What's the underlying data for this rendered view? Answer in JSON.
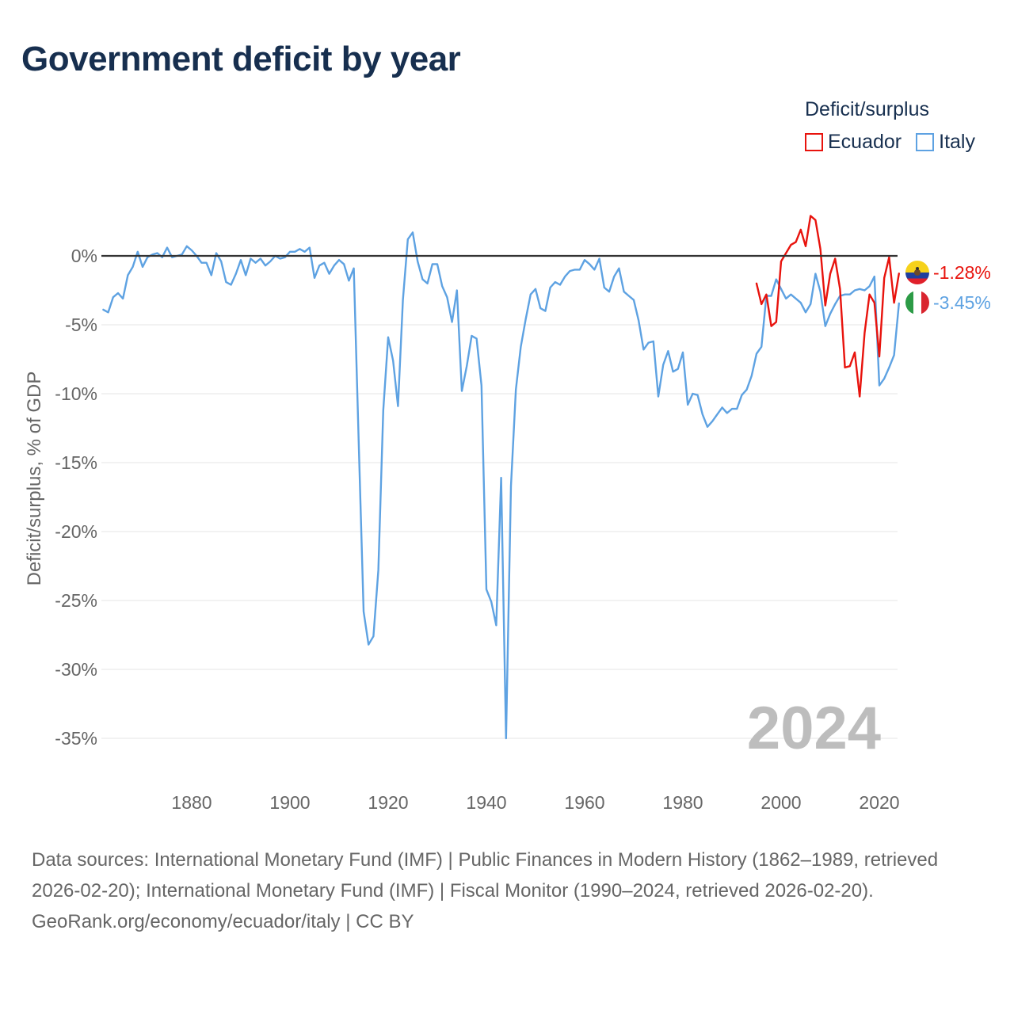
{
  "title": "Government deficit by year",
  "legend": {
    "title": "Deficit/surplus",
    "items": [
      {
        "label": "Ecuador",
        "color": "#e8130d"
      },
      {
        "label": "Italy",
        "color": "#5ea2e2"
      }
    ]
  },
  "year_watermark": "2024",
  "sources": "Data sources: International Monetary Fund (IMF) | Public Finances in Modern History (1862–1989, retrieved 2026-02-20); International Monetary Fund (IMF) | Fiscal Monitor (1990–2024, retrieved 2026-02-20).",
  "attribution": "GeoRank.org/economy/ecuador/italy | CC BY",
  "chart_data": {
    "type": "line",
    "title": "Government deficit by year",
    "xlabel": "",
    "ylabel": "Deficit/surplus, % of GDP",
    "xlim": [
      1862,
      2024
    ],
    "ylim": [
      -36,
      3
    ],
    "x_ticks": [
      1880,
      1900,
      1920,
      1940,
      1960,
      1980,
      2000,
      2020
    ],
    "x_tick_labels": [
      "1880",
      "1900",
      "1920",
      "1940",
      "1960",
      "1980",
      "2000",
      "2020"
    ],
    "y_ticks": [
      0,
      -5,
      -10,
      -15,
      -20,
      -25,
      -30,
      -35
    ],
    "y_tick_labels": [
      "0%",
      "-5%",
      "-10%",
      "-15%",
      "-20%",
      "-25%",
      "-30%",
      "-35%"
    ],
    "grid": true,
    "legend_position": "top-right",
    "series": [
      {
        "name": "Ecuador",
        "color": "#e8130d",
        "end_label": "-1.28%",
        "x": [
          1995,
          1996,
          1997,
          1998,
          1999,
          2000,
          2001,
          2002,
          2003,
          2004,
          2005,
          2006,
          2007,
          2008,
          2009,
          2010,
          2011,
          2012,
          2013,
          2014,
          2015,
          2016,
          2017,
          2018,
          2019,
          2020,
          2021,
          2022,
          2023,
          2024
        ],
        "y": [
          -2.0,
          -3.5,
          -2.8,
          -5.1,
          -4.8,
          -0.4,
          0.2,
          0.8,
          1.0,
          1.9,
          0.7,
          2.9,
          2.6,
          0.5,
          -3.6,
          -1.3,
          -0.2,
          -2.4,
          -8.1,
          -8.0,
          -7.0,
          -10.2,
          -5.6,
          -2.8,
          -3.4,
          -7.3,
          -1.6,
          -0.1,
          -3.4,
          -1.28
        ]
      },
      {
        "name": "Italy",
        "color": "#5ea2e2",
        "end_label": "-3.45%",
        "x": [
          1862,
          1863,
          1864,
          1865,
          1866,
          1867,
          1868,
          1869,
          1870,
          1871,
          1872,
          1873,
          1874,
          1875,
          1876,
          1877,
          1878,
          1879,
          1880,
          1881,
          1882,
          1883,
          1884,
          1885,
          1886,
          1887,
          1888,
          1889,
          1890,
          1891,
          1892,
          1893,
          1894,
          1895,
          1896,
          1897,
          1898,
          1899,
          1900,
          1901,
          1902,
          1903,
          1904,
          1905,
          1906,
          1907,
          1908,
          1909,
          1910,
          1911,
          1912,
          1913,
          1914,
          1915,
          1916,
          1917,
          1918,
          1919,
          1920,
          1921,
          1922,
          1923,
          1924,
          1925,
          1926,
          1927,
          1928,
          1929,
          1930,
          1931,
          1932,
          1933,
          1934,
          1935,
          1936,
          1937,
          1938,
          1939,
          1940,
          1941,
          1942,
          1943,
          1944,
          1945,
          1946,
          1947,
          1948,
          1949,
          1950,
          1951,
          1952,
          1953,
          1954,
          1955,
          1956,
          1957,
          1958,
          1959,
          1960,
          1961,
          1962,
          1963,
          1964,
          1965,
          1966,
          1967,
          1968,
          1969,
          1970,
          1971,
          1972,
          1973,
          1974,
          1975,
          1976,
          1977,
          1978,
          1979,
          1980,
          1981,
          1982,
          1983,
          1984,
          1985,
          1986,
          1987,
          1988,
          1989,
          1990,
          1991,
          1992,
          1993,
          1994,
          1995,
          1996,
          1997,
          1998,
          1999,
          2000,
          2001,
          2002,
          2003,
          2004,
          2005,
          2006,
          2007,
          2008,
          2009,
          2010,
          2011,
          2012,
          2013,
          2014,
          2015,
          2016,
          2017,
          2018,
          2019,
          2020,
          2021,
          2022,
          2023,
          2024
        ],
        "y": [
          -3.9,
          -4.1,
          -3.0,
          -2.7,
          -3.1,
          -1.4,
          -0.8,
          0.3,
          -0.8,
          -0.1,
          0.1,
          0.2,
          -0.1,
          0.6,
          -0.1,
          0.0,
          0.1,
          0.7,
          0.4,
          0.0,
          -0.5,
          -0.5,
          -1.4,
          0.2,
          -0.4,
          -1.9,
          -2.1,
          -1.3,
          -0.3,
          -1.4,
          -0.2,
          -0.5,
          -0.2,
          -0.7,
          -0.4,
          0.0,
          -0.2,
          -0.1,
          0.3,
          0.3,
          0.5,
          0.3,
          0.6,
          -1.6,
          -0.7,
          -0.5,
          -1.3,
          -0.7,
          -0.3,
          -0.6,
          -1.8,
          -0.9,
          -13.5,
          -25.8,
          -28.2,
          -27.6,
          -22.8,
          -11.2,
          -5.9,
          -7.6,
          -10.9,
          -3.2,
          1.2,
          1.7,
          -0.4,
          -1.7,
          -2.0,
          -0.6,
          -0.6,
          -2.2,
          -3.0,
          -4.8,
          -2.5,
          -9.8,
          -8.0,
          -5.8,
          -6.0,
          -9.4,
          -24.2,
          -25.1,
          -26.8,
          -16.1,
          -35.0,
          -16.7,
          -9.7,
          -6.6,
          -4.6,
          -2.8,
          -2.4,
          -3.8,
          -4.0,
          -2.3,
          -1.9,
          -2.1,
          -1.5,
          -1.1,
          -1.0,
          -1.0,
          -0.3,
          -0.6,
          -1.0,
          -0.2,
          -2.3,
          -2.6,
          -1.5,
          -0.9,
          -2.6,
          -2.9,
          -3.2,
          -4.7,
          -6.8,
          -6.3,
          -6.2,
          -10.2,
          -7.9,
          -6.9,
          -8.4,
          -8.2,
          -7.0,
          -10.8,
          -10.0,
          -10.1,
          -11.5,
          -12.4,
          -12.0,
          -11.5,
          -11.0,
          -11.4,
          -11.1,
          -11.1,
          -10.1,
          -9.7,
          -8.7,
          -7.1,
          -6.6,
          -2.9,
          -2.9,
          -1.7,
          -2.4,
          -3.1,
          -2.8,
          -3.1,
          -3.4,
          -4.1,
          -3.5,
          -1.3,
          -2.6,
          -5.1,
          -4.2,
          -3.5,
          -2.9,
          -2.8,
          -2.8,
          -2.5,
          -2.4,
          -2.5,
          -2.2,
          -1.5,
          -9.4,
          -8.9,
          -8.1,
          -7.2,
          -3.45
        ]
      }
    ]
  }
}
